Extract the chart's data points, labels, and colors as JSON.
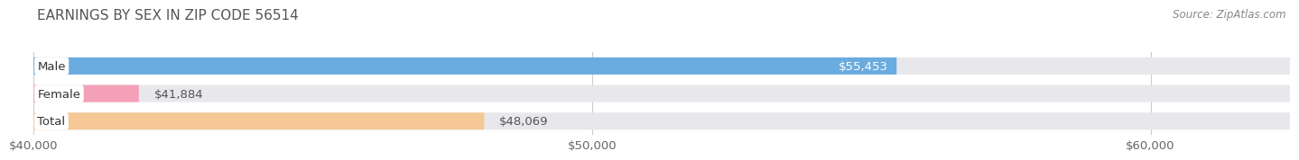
{
  "title": "Earnings by Sex in Zip Code 56514",
  "title_display": "EARNINGS BY SEX IN ZIP CODE 56514",
  "source": "Source: ZipAtlas.com",
  "categories": [
    "Male",
    "Female",
    "Total"
  ],
  "values": [
    55453,
    41884,
    48069
  ],
  "bar_colors": [
    "#6aabe0",
    "#f4a0b8",
    "#f5c896"
  ],
  "bar_bg_color": "#e8e8ec",
  "bar_labels": [
    "$55,453",
    "$41,884",
    "$48,069"
  ],
  "label_inside": [
    true,
    false,
    false
  ],
  "xmin": 40000,
  "xmax": 62500,
  "xticks": [
    40000,
    50000,
    60000
  ],
  "xtick_labels": [
    "$40,000",
    "$50,000",
    "$60,000"
  ],
  "background_color": "#ffffff",
  "title_fontsize": 11,
  "source_fontsize": 8.5,
  "label_fontsize": 9.5,
  "cat_fontsize": 9.5
}
